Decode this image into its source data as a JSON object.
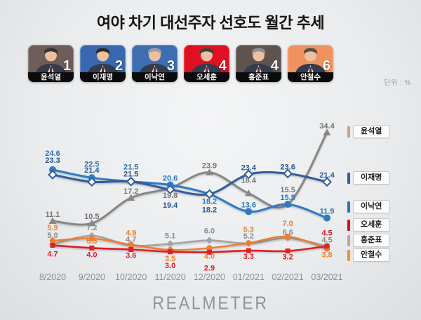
{
  "title": "여야 차기 대선주자 선호도 월간 추세",
  "unit_label": "단위 : %",
  "brand": "REALMETER",
  "candidates": [
    {
      "name": "윤석열",
      "rank": "1",
      "color": "#6e5d58"
    },
    {
      "name": "이재명",
      "rank": "2",
      "color": "#3a68b0"
    },
    {
      "name": "이낙연",
      "rank": "3",
      "color": "#3f6db2"
    },
    {
      "name": "오세훈",
      "rank": "4",
      "color": "#e00f22"
    },
    {
      "name": "홍준표",
      "rank": "4",
      "color": "#5f534e"
    },
    {
      "name": "안철수",
      "rank": "6",
      "color": "#ef9260"
    }
  ],
  "chart_data": {
    "type": "line",
    "categories": [
      "8/2020",
      "9/2020",
      "10/2020",
      "11/2020",
      "12/2020",
      "01/2021",
      "02/2021",
      "03/2021"
    ],
    "series": [
      {
        "name": "윤석열",
        "values": [
          11.1,
          10.5,
          17.2,
          19.8,
          23.9,
          18.4,
          15.5,
          34.4
        ],
        "color": "#878787",
        "label_color": "#757575",
        "legend_color": "#c9a283",
        "marker": "triangle"
      },
      {
        "name": "이재명",
        "values": [
          23.3,
          21.4,
          21.5,
          19.4,
          18.2,
          23.4,
          23.6,
          21.4
        ],
        "color": "#305d9b",
        "label_color": "#265a96",
        "legend_color": "#2e5fa3",
        "marker": "diamond-open"
      },
      {
        "name": "이낙연",
        "values": [
          24.6,
          22.5,
          21.5,
          20.6,
          18.2,
          13.6,
          15.5,
          11.9
        ],
        "color": "#2f7ac4",
        "label_color": "#2e75b6",
        "legend_color": "#2e75c4",
        "marker": "circle"
      },
      {
        "name": "오세훈",
        "values": [
          4.7,
          4.0,
          3.6,
          3.0,
          2.9,
          3.3,
          3.2,
          4.5
        ],
        "color": "#e01f26",
        "label_color": "#df1e24",
        "legend_color": "#d6101f",
        "marker": "square"
      },
      {
        "name": "홍준표",
        "values": [
          5.0,
          7.2,
          4.7,
          5.1,
          6.0,
          5.2,
          6.6,
          4.5
        ],
        "color": "#a2a2a2",
        "label_color": "#8c8c8c",
        "legend_color": "#bfa696",
        "marker": "diamond-fill"
      },
      {
        "name": "안철수",
        "values": [
          5.9,
          6.5,
          4.9,
          3.5,
          4.0,
          5.3,
          7.0,
          3.8
        ],
        "color": "#ee7d2f",
        "label_color": "#ec7f22",
        "legend_color": "#f0922c",
        "marker": "circle-small"
      }
    ],
    "ylim": [
      0,
      40
    ],
    "grid": false,
    "legend_position": "right",
    "xlabel": "",
    "ylabel": ""
  }
}
